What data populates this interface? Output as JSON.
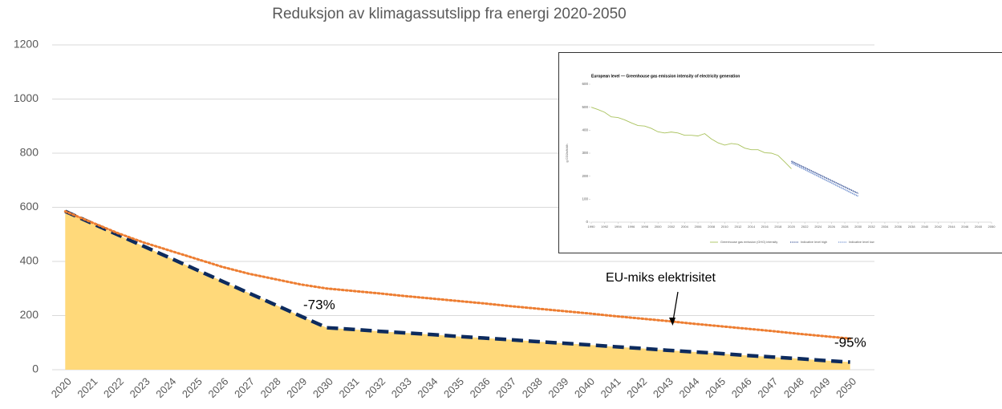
{
  "chart_data": [
    {
      "type": "line",
      "title": "Reduksjon av klimagassutslipp fra energi 2020-2050",
      "categories": [
        "2020",
        "2021",
        "2022",
        "2023",
        "2024",
        "2025",
        "2026",
        "2027",
        "2028",
        "2029",
        "2030",
        "2031",
        "2032",
        "2033",
        "2034",
        "2035",
        "2036",
        "2037",
        "2038",
        "2039",
        "2040",
        "2041",
        "2042",
        "2043",
        "2044",
        "2045",
        "2046",
        "2047",
        "2048",
        "2049",
        "2050"
      ],
      "series": [
        {
          "style": "area",
          "color": "#ffd97a",
          "values": [
            585,
            542,
            499,
            456,
            413,
            370,
            327,
            284,
            241,
            198,
            155,
            149,
            142,
            136,
            130,
            123,
            117,
            111,
            104,
            98,
            92,
            85,
            79,
            72,
            66,
            60,
            53,
            47,
            41,
            34,
            28
          ]
        },
        {
          "style": "dashed",
          "color": "#0d2b5e",
          "values": [
            585,
            542,
            499,
            456,
            413,
            370,
            327,
            284,
            241,
            198,
            155,
            149,
            142,
            136,
            130,
            123,
            117,
            111,
            104,
            98,
            92,
            85,
            79,
            72,
            66,
            60,
            53,
            47,
            41,
            34,
            28
          ]
        },
        {
          "style": "dotted",
          "color": "#ed7d31",
          "values": [
            585,
            545,
            505,
            470,
            440,
            410,
            380,
            355,
            335,
            315,
            300,
            291,
            282,
            272,
            263,
            254,
            245,
            235,
            226,
            217,
            208,
            198,
            189,
            180,
            170,
            161,
            152,
            143,
            133,
            124,
            115
          ]
        }
      ],
      "ylim": [
        0,
        1200
      ],
      "yticks": [
        0,
        200,
        400,
        600,
        800,
        1000,
        1200
      ],
      "grid": true,
      "annotations": [
        "-73%",
        "EU-miks elektrisitet",
        "-95%"
      ]
    },
    {
      "type": "line",
      "title": "European level — Greenhouse gas emission intensity of electricity generation",
      "ylabel": "g CO2e/kWh",
      "xlim": [
        1990,
        2050
      ],
      "xticks": [
        1990,
        1992,
        1994,
        1996,
        1998,
        2000,
        2002,
        2004,
        2006,
        2008,
        2010,
        2012,
        2014,
        2016,
        2018,
        2020,
        2022,
        2024,
        2026,
        2028,
        2030,
        2032,
        2034,
        2036,
        2038,
        2040,
        2042,
        2044,
        2046,
        2048,
        2050
      ],
      "ylim": [
        0,
        600
      ],
      "yticks": [
        0,
        100,
        200,
        300,
        400,
        500,
        600
      ],
      "series": [
        {
          "name": "Greenhouse gas emission (GHG) intensity",
          "style": "solid",
          "color": "#a9c25d",
          "x": [
            1990,
            1991,
            1992,
            1993,
            1994,
            1995,
            1996,
            1997,
            1998,
            1999,
            2000,
            2001,
            2002,
            2003,
            2004,
            2005,
            2006,
            2007,
            2008,
            2009,
            2010,
            2011,
            2012,
            2013,
            2014,
            2015,
            2016,
            2017,
            2018,
            2019,
            2020
          ],
          "values": [
            500,
            490,
            478,
            458,
            455,
            445,
            432,
            420,
            418,
            408,
            393,
            388,
            392,
            388,
            378,
            378,
            375,
            385,
            362,
            345,
            335,
            342,
            338,
            322,
            315,
            315,
            302,
            300,
            290,
            262,
            232
          ]
        },
        {
          "name": "Indicative level high",
          "style": "dotted",
          "color": "#1f3c88",
          "x": [
            2020,
            2021,
            2022,
            2023,
            2024,
            2025,
            2026,
            2027,
            2028,
            2029,
            2030
          ],
          "values": [
            265,
            251,
            237,
            223,
            209,
            195,
            181,
            167,
            153,
            139,
            125
          ]
        },
        {
          "name": "Indicative level low",
          "style": "dotted",
          "color": "#5b7fc7",
          "x": [
            2020,
            2021,
            2022,
            2023,
            2024,
            2025,
            2026,
            2027,
            2028,
            2029,
            2030
          ],
          "values": [
            258,
            243,
            229,
            214,
            200,
            185,
            171,
            156,
            142,
            127,
            113
          ]
        }
      ]
    }
  ]
}
